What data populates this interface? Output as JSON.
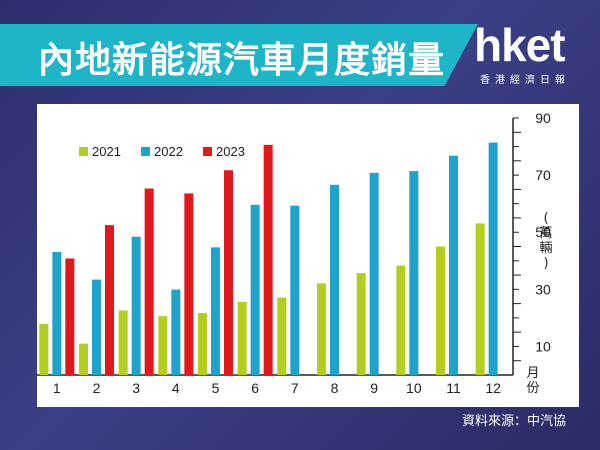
{
  "title": "內地新能源汽車月度銷量",
  "logo": {
    "name": "hket",
    "subtitle": "香港經濟日報"
  },
  "source": "資料來源：中汽協",
  "chart_data": {
    "type": "bar",
    "categories": [
      "1",
      "2",
      "3",
      "4",
      "5",
      "6",
      "7",
      "8",
      "9",
      "10",
      "11",
      "12"
    ],
    "series": [
      {
        "name": "2021",
        "color": "#b5cd1f",
        "values": [
          17.9,
          11.0,
          22.6,
          20.6,
          21.7,
          25.6,
          27.1,
          32.1,
          35.7,
          38.3,
          45.0,
          53.1
        ]
      },
      {
        "name": "2022",
        "color": "#1ea3cc",
        "values": [
          43.1,
          33.4,
          48.4,
          29.9,
          44.7,
          59.6,
          59.3,
          66.6,
          70.8,
          71.4,
          76.8,
          81.4
        ]
      },
      {
        "name": "2023",
        "color": "#e01a1c",
        "values": [
          40.8,
          52.5,
          65.3,
          63.6,
          71.7,
          80.6,
          null,
          null,
          null,
          null,
          null,
          null
        ]
      }
    ],
    "yaxis": {
      "ticks": [
        10,
        30,
        50,
        70,
        90
      ],
      "ylim": [
        0,
        90
      ],
      "position": "right"
    },
    "ylabel": "(萬輛)",
    "xlabel": "月份",
    "legend_position": "top-left",
    "grid": false
  }
}
